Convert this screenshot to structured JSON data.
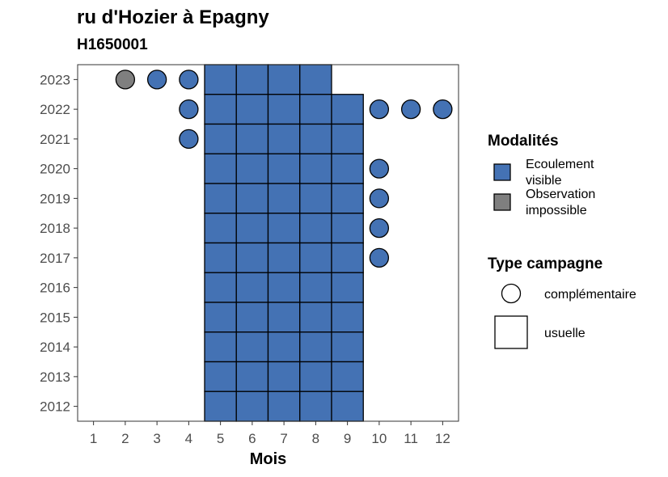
{
  "title": "ru d'Hozier à Epagny",
  "subtitle": "H1650001",
  "chart_data": {
    "type": "heatmap",
    "xlabel": "Mois",
    "ylabel": "",
    "x_ticks": [
      1,
      2,
      3,
      4,
      5,
      6,
      7,
      8,
      9,
      10,
      11,
      12
    ],
    "y_ticks": [
      2012,
      2013,
      2014,
      2015,
      2016,
      2017,
      2018,
      2019,
      2020,
      2021,
      2022,
      2023
    ],
    "xlim": [
      0.5,
      12.5
    ],
    "ylim": [
      2011.5,
      2023.5
    ],
    "grid": false,
    "legend_placement": "right",
    "colors": {
      "Ecoulement visible": "#4472b4",
      "Observation impossible": "#7f7f7f"
    },
    "legend_modalites": {
      "title": "Modalités",
      "entries": [
        {
          "label_line1": "Ecoulement",
          "label_line2": "visible",
          "key": "Ecoulement visible"
        },
        {
          "label_line1": "Observation",
          "label_line2": "impossible",
          "key": "Observation impossible"
        }
      ]
    },
    "legend_campagne": {
      "title": "Type campagne",
      "entries": [
        {
          "label": "complémentaire",
          "shape": "circle"
        },
        {
          "label": "usuelle",
          "shape": "square"
        }
      ]
    },
    "usuelle": [
      {
        "year": 2023,
        "months": [
          5,
          6,
          7,
          8
        ],
        "modalite": "Ecoulement visible"
      },
      {
        "year": 2022,
        "months": [
          5,
          6,
          7,
          8,
          9
        ],
        "modalite": "Ecoulement visible"
      },
      {
        "year": 2021,
        "months": [
          5,
          6,
          7,
          8,
          9
        ],
        "modalite": "Ecoulement visible"
      },
      {
        "year": 2020,
        "months": [
          5,
          6,
          7,
          8,
          9
        ],
        "modalite": "Ecoulement visible"
      },
      {
        "year": 2019,
        "months": [
          5,
          6,
          7,
          8,
          9
        ],
        "modalite": "Ecoulement visible"
      },
      {
        "year": 2018,
        "months": [
          5,
          6,
          7,
          8,
          9
        ],
        "modalite": "Ecoulement visible"
      },
      {
        "year": 2017,
        "months": [
          5,
          6,
          7,
          8,
          9
        ],
        "modalite": "Ecoulement visible"
      },
      {
        "year": 2016,
        "months": [
          5,
          6,
          7,
          8,
          9
        ],
        "modalite": "Ecoulement visible"
      },
      {
        "year": 2015,
        "months": [
          5,
          6,
          7,
          8,
          9
        ],
        "modalite": "Ecoulement visible"
      },
      {
        "year": 2014,
        "months": [
          5,
          6,
          7,
          8,
          9
        ],
        "modalite": "Ecoulement visible"
      },
      {
        "year": 2013,
        "months": [
          5,
          6,
          7,
          8,
          9
        ],
        "modalite": "Ecoulement visible"
      },
      {
        "year": 2012,
        "months": [
          5,
          6,
          7,
          8,
          9
        ],
        "modalite": "Ecoulement visible"
      }
    ],
    "complementaire": [
      {
        "year": 2023,
        "month": 2,
        "modalite": "Observation impossible"
      },
      {
        "year": 2023,
        "month": 3,
        "modalite": "Ecoulement visible"
      },
      {
        "year": 2023,
        "month": 4,
        "modalite": "Ecoulement visible"
      },
      {
        "year": 2022,
        "month": 4,
        "modalite": "Ecoulement visible"
      },
      {
        "year": 2022,
        "month": 10,
        "modalite": "Ecoulement visible"
      },
      {
        "year": 2022,
        "month": 11,
        "modalite": "Ecoulement visible"
      },
      {
        "year": 2022,
        "month": 12,
        "modalite": "Ecoulement visible"
      },
      {
        "year": 2021,
        "month": 4,
        "modalite": "Ecoulement visible"
      },
      {
        "year": 2020,
        "month": 10,
        "modalite": "Ecoulement visible"
      },
      {
        "year": 2019,
        "month": 10,
        "modalite": "Ecoulement visible"
      },
      {
        "year": 2018,
        "month": 10,
        "modalite": "Ecoulement visible"
      },
      {
        "year": 2017,
        "month": 10,
        "modalite": "Ecoulement visible"
      }
    ]
  }
}
